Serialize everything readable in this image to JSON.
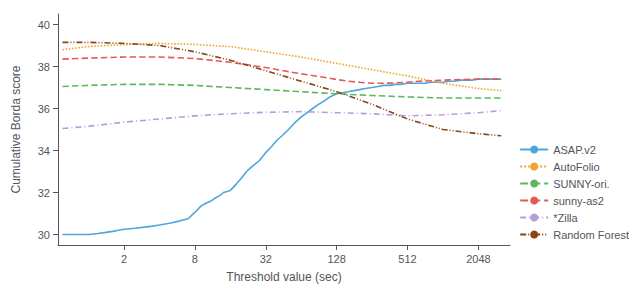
{
  "chart_data": {
    "type": "line",
    "xlabel": "Threshold value (sec)",
    "ylabel": "Cumulative Borda score",
    "log": "x",
    "xlim": [
      0.55,
      3800
    ],
    "xticks": [
      2,
      8,
      32,
      128,
      512,
      2048
    ],
    "ylim": [
      29.5,
      40.5
    ],
    "yticks": [
      30,
      32,
      34,
      36,
      38,
      40
    ],
    "grid": false,
    "legend": "lower right",
    "series": [
      {
        "name": "ASAP.v2",
        "color": "#4ea6dc",
        "line_style": "solid",
        "x": [
          0.6,
          0.7,
          0.8,
          0.9,
          1.0,
          1.2,
          1.4,
          1.6,
          1.8,
          2.0,
          2.5,
          3.0,
          3.5,
          4.0,
          5.0,
          6.0,
          7.0,
          8.0,
          9.0,
          10.0,
          11.0,
          12.0,
          13.0,
          14.0,
          15.0,
          16.0,
          18.0,
          20.0,
          22.0,
          24.0,
          26.0,
          28.0,
          30.0,
          32.0,
          36.0,
          40.0,
          45.0,
          50.0,
          56.0,
          64.0,
          72.0,
          80.0,
          90.0,
          100.0,
          112.0,
          128.0,
          144.0,
          160.0,
          180.0,
          200.0,
          225.0,
          256.0,
          288.0,
          320.0,
          360.0,
          400.0,
          450.0,
          512.0,
          576.0,
          640.0,
          720.0,
          800.0,
          900.0,
          1024.0,
          1152.0,
          1280.0,
          1440.0,
          1600.0,
          1800.0,
          2048.0,
          2304.0,
          2560.0,
          2880.0,
          3200.0
        ],
        "values": [
          30.0,
          30.0,
          30.0,
          30.0,
          30.0,
          30.05,
          30.1,
          30.15,
          30.2,
          30.25,
          30.3,
          30.35,
          30.4,
          30.45,
          30.55,
          30.65,
          30.75,
          31.05,
          31.35,
          31.5,
          31.6,
          31.75,
          31.85,
          32.0,
          32.05,
          32.1,
          32.4,
          32.7,
          33.0,
          33.2,
          33.35,
          33.5,
          33.7,
          33.9,
          34.2,
          34.5,
          34.75,
          35.0,
          35.3,
          35.6,
          35.8,
          36.0,
          36.2,
          36.35,
          36.55,
          36.7,
          36.75,
          36.8,
          36.85,
          36.9,
          36.95,
          37.0,
          37.05,
          37.1,
          37.1,
          37.15,
          37.15,
          37.2,
          37.2,
          37.2,
          37.2,
          37.25,
          37.25,
          37.25,
          37.3,
          37.3,
          37.35,
          37.35,
          37.35,
          37.4,
          37.4,
          37.4,
          37.4,
          37.4
        ]
      },
      {
        "name": "AutoFolio",
        "color": "#f4a427",
        "line_style": "dotted",
        "x": [
          0.6,
          1.0,
          2.0,
          4.0,
          8.0,
          16.0,
          32.0,
          64.0,
          128.0,
          256.0,
          512.0,
          1024.0,
          2048.0,
          3200.0
        ],
        "values": [
          38.8,
          38.95,
          39.05,
          39.1,
          39.05,
          38.95,
          38.7,
          38.45,
          38.15,
          37.85,
          37.55,
          37.2,
          36.95,
          36.85
        ]
      },
      {
        "name": "SUNNY-ori.",
        "color": "#5cb85c",
        "line_style": "dashed",
        "x": [
          0.6,
          1.0,
          2.0,
          4.0,
          8.0,
          16.0,
          32.0,
          64.0,
          128.0,
          256.0,
          512.0,
          1024.0,
          2048.0,
          3200.0
        ],
        "values": [
          37.05,
          37.1,
          37.15,
          37.15,
          37.1,
          37.0,
          36.9,
          36.8,
          36.7,
          36.62,
          36.55,
          36.5,
          36.5,
          36.5
        ]
      },
      {
        "name": "sunny-as2",
        "color": "#e05a5a",
        "line_style": "dashed",
        "x": [
          0.6,
          1.0,
          2.0,
          4.0,
          8.0,
          16.0,
          32.0,
          64.0,
          96.0,
          128.0,
          160.0,
          200.0,
          256.0,
          320.0,
          400.0,
          512.0,
          640.0,
          800.0,
          1024.0,
          1280.0,
          1600.0,
          2048.0,
          2560.0,
          3200.0
        ],
        "values": [
          38.35,
          38.4,
          38.45,
          38.45,
          38.38,
          38.2,
          37.95,
          37.65,
          37.5,
          37.38,
          37.3,
          37.25,
          37.2,
          37.2,
          37.22,
          37.25,
          37.3,
          37.32,
          37.35,
          37.37,
          37.38,
          37.4,
          37.4,
          37.4
        ]
      },
      {
        "name": "*Zilla",
        "color": "#b39ddb",
        "line_style": "dashdot",
        "x": [
          0.6,
          1.0,
          2.0,
          4.0,
          8.0,
          16.0,
          32.0,
          64.0,
          128.0,
          256.0,
          512.0,
          1024.0,
          2048.0,
          3200.0
        ],
        "values": [
          35.05,
          35.15,
          35.35,
          35.5,
          35.65,
          35.75,
          35.82,
          35.85,
          35.8,
          35.75,
          35.65,
          35.7,
          35.8,
          35.9
        ]
      },
      {
        "name": "Random Forest",
        "color": "#8B4513",
        "line_style": "dashdotdot",
        "x": [
          0.6,
          1.0,
          2.0,
          4.0,
          8.0,
          16.0,
          32.0,
          64.0,
          128.0,
          256.0,
          512.0,
          1024.0,
          2048.0,
          3200.0
        ],
        "values": [
          39.15,
          39.15,
          39.1,
          39.0,
          38.7,
          38.3,
          37.8,
          37.3,
          36.8,
          36.2,
          35.5,
          35.0,
          34.8,
          34.7
        ]
      }
    ]
  }
}
